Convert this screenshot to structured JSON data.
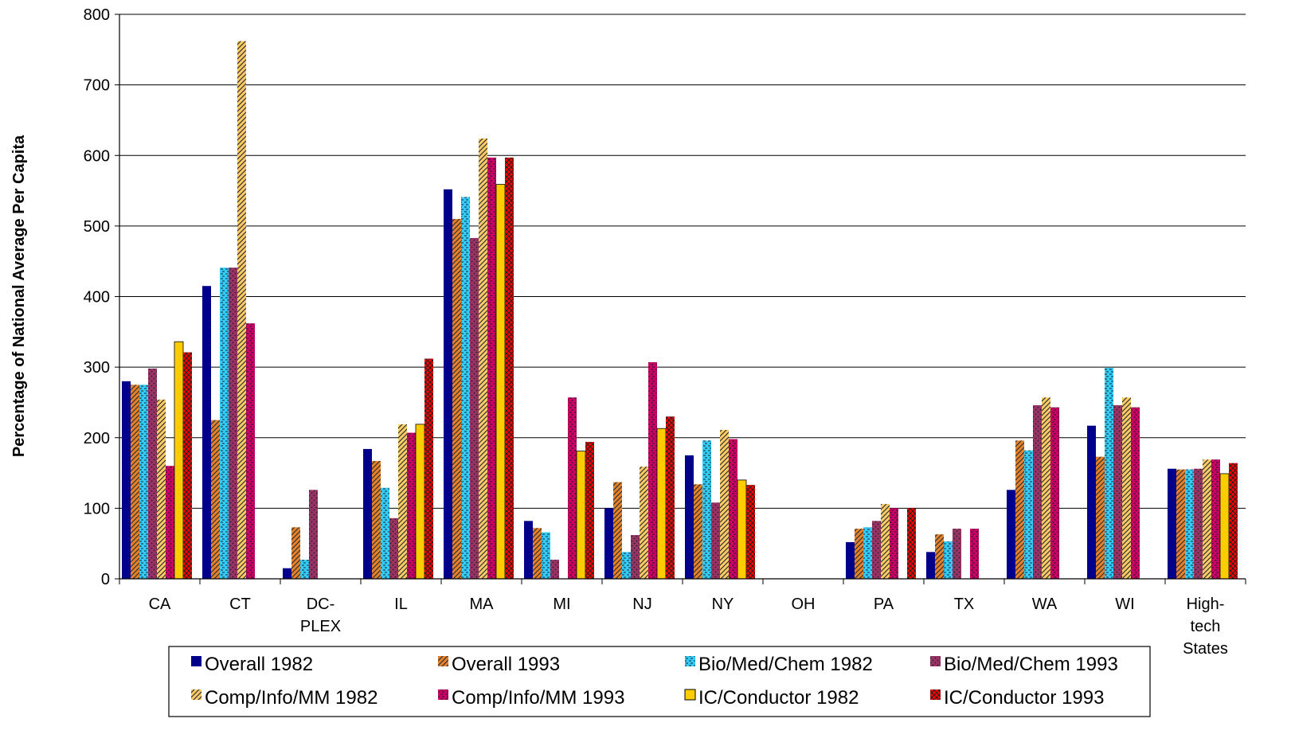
{
  "chart_data": {
    "type": "bar",
    "title": "",
    "xlabel": "",
    "ylabel": "Percentage of National Average Per Capita",
    "ylim": [
      0,
      800
    ],
    "yticks": [
      0,
      100,
      200,
      300,
      400,
      500,
      600,
      700,
      800
    ],
    "grid": true,
    "legend_position": "bottom",
    "categories": [
      [
        "CA"
      ],
      [
        "CT"
      ],
      [
        "DC-",
        "PLEX"
      ],
      [
        "IL"
      ],
      [
        "MA"
      ],
      [
        "MI"
      ],
      [
        "NJ"
      ],
      [
        "NY"
      ],
      [
        "OH"
      ],
      [
        "PA"
      ],
      [
        "TX"
      ],
      [
        "WA"
      ],
      [
        "WI"
      ],
      [
        "High-",
        "tech",
        "States"
      ]
    ],
    "series": [
      {
        "name": "Overall 1982",
        "color": "#00008B",
        "pattern": "solid",
        "values": [
          280,
          415,
          15,
          184,
          552,
          82,
          100,
          175,
          0,
          52,
          38,
          126,
          217,
          156
        ]
      },
      {
        "name": "Overall 1993",
        "color": "#E8822A",
        "pattern": "diag",
        "values": [
          275,
          225,
          73,
          167,
          510,
          72,
          137,
          134,
          0,
          71,
          63,
          196,
          173,
          155
        ]
      },
      {
        "name": "Bio/Med/Chem 1982",
        "color": "#33CCFF",
        "pattern": "dash",
        "values": [
          275,
          441,
          27,
          129,
          541,
          66,
          38,
          196,
          0,
          73,
          53,
          182,
          299,
          155
        ]
      },
      {
        "name": "Bio/Med/Chem 1993",
        "color": "#993366",
        "pattern": "dots",
        "values": [
          298,
          441,
          126,
          86,
          483,
          27,
          62,
          108,
          0,
          82,
          71,
          246,
          246,
          156
        ]
      },
      {
        "name": "Comp/Info/MM 1982",
        "color": "#FFCC66",
        "pattern": "diag",
        "values": [
          254,
          762,
          0,
          219,
          624,
          0,
          159,
          211,
          0,
          106,
          0,
          257,
          257,
          169
        ]
      },
      {
        "name": "Comp/Info/MM 1993",
        "color": "#CC0066",
        "pattern": "dash",
        "values": [
          160,
          362,
          0,
          207,
          597,
          257,
          307,
          198,
          0,
          100,
          71,
          243,
          243,
          169
        ]
      },
      {
        "name": "IC/Conductor 1982",
        "color": "#FFCC00",
        "pattern": "solid",
        "values": [
          336,
          0,
          0,
          219,
          559,
          181,
          213,
          140,
          0,
          0,
          0,
          0,
          0,
          149
        ]
      },
      {
        "name": "IC/Conductor 1993",
        "color": "#FF0000",
        "pattern": "cross",
        "values": [
          321,
          0,
          0,
          312,
          597,
          194,
          230,
          133,
          0,
          100,
          0,
          0,
          0,
          164
        ]
      }
    ]
  }
}
